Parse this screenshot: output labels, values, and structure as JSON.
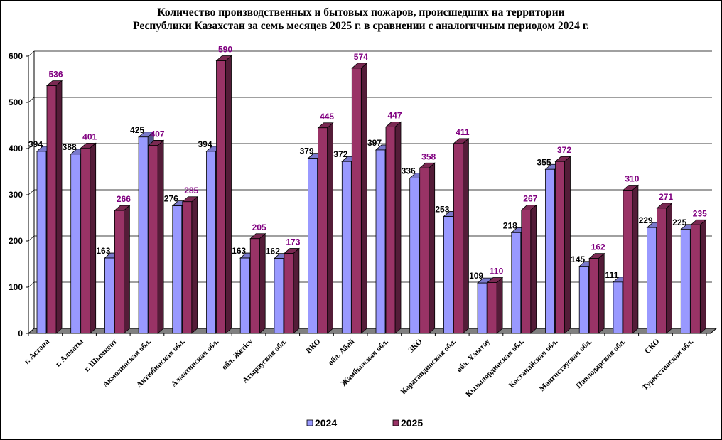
{
  "chart_data": {
    "type": "bar",
    "title_line1": "Количество производственных и бытовых пожаров, происшедших на территории",
    "title_line2": "Республики Казахстан за семь месяцев 2025 г. в сравнении с аналогичным периодом 2024 г.",
    "categories": [
      "г. Астана",
      "г. Алматы",
      "г. Шымкент",
      "Акмолинская обл.",
      "Актюбинская обл.",
      "Алматинская обл.",
      "обл. Жетісу",
      "Атырауская обл.",
      "ВКО",
      "обл. Абай",
      "Жамбылская обл.",
      "ЗКО",
      "Карагандинская обл.",
      "обл. Ұлытау",
      "Кызылординская обл.",
      "Костанайская обл.",
      "Мангистауская обл.",
      "Павлодарская обл.",
      "СКО",
      "Туркестанская обл."
    ],
    "series": [
      {
        "name": "2024",
        "color": "#9999ff",
        "values": [
          394,
          388,
          163,
          425,
          276,
          394,
          163,
          162,
          379,
          372,
          397,
          336,
          253,
          109,
          218,
          355,
          145,
          111,
          229,
          225
        ]
      },
      {
        "name": "2025",
        "color": "#993366",
        "values": [
          536,
          401,
          266,
          407,
          285,
          590,
          205,
          173,
          445,
          574,
          447,
          358,
          411,
          110,
          267,
          372,
          162,
          310,
          271,
          235
        ]
      }
    ],
    "ylim": [
      0,
      600
    ],
    "yticks": [
      0,
      100,
      200,
      300,
      400,
      500,
      600
    ],
    "legend_position": "bottom",
    "label_color_2025": "#800080"
  }
}
